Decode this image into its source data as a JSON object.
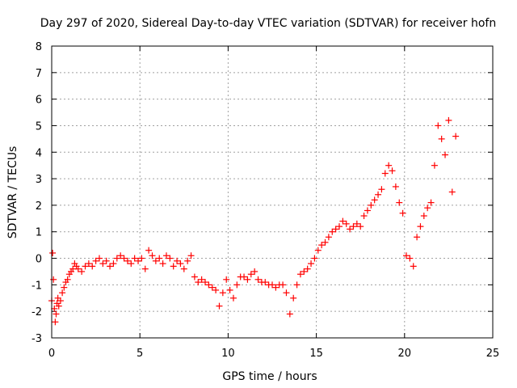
{
  "chart_data": {
    "type": "scatter",
    "title": "Day 297 of 2020, Sidereal Day-to-day VTEC variation (SDTVAR) for receiver hofn",
    "xlabel": "GPS time / hours",
    "ylabel": "SDTVAR / TECUs",
    "xlim": [
      0,
      25
    ],
    "ylim": [
      -3,
      8
    ],
    "xticks": [
      0,
      5,
      10,
      15,
      20,
      25
    ],
    "yticks": [
      -3,
      -2,
      -1,
      0,
      1,
      2,
      3,
      4,
      5,
      6,
      7,
      8
    ],
    "grid": true,
    "marker": "+",
    "color": "#ff0000",
    "series": [
      {
        "name": "SDTVAR",
        "x": [
          0.0,
          0.05,
          0.1,
          0.15,
          0.2,
          0.25,
          0.3,
          0.35,
          0.4,
          0.5,
          0.6,
          0.7,
          0.8,
          0.9,
          1.0,
          1.1,
          1.2,
          1.3,
          1.4,
          1.5,
          1.7,
          1.9,
          2.1,
          2.3,
          2.5,
          2.7,
          2.9,
          3.1,
          3.3,
          3.5,
          3.7,
          3.9,
          4.1,
          4.3,
          4.5,
          4.7,
          4.9,
          5.1,
          5.3,
          5.5,
          5.7,
          5.9,
          6.1,
          6.3,
          6.5,
          6.7,
          6.9,
          7.1,
          7.3,
          7.5,
          7.7,
          7.9,
          8.1,
          8.3,
          8.5,
          8.7,
          8.9,
          9.1,
          9.3,
          9.5,
          9.7,
          9.9,
          10.1,
          10.3,
          10.5,
          10.7,
          10.9,
          11.1,
          11.3,
          11.5,
          11.7,
          11.9,
          12.1,
          12.3,
          12.5,
          12.7,
          12.9,
          13.1,
          13.3,
          13.5,
          13.7,
          13.9,
          14.1,
          14.3,
          14.5,
          14.7,
          14.9,
          15.1,
          15.3,
          15.5,
          15.7,
          15.9,
          16.1,
          16.3,
          16.5,
          16.7,
          16.9,
          17.1,
          17.3,
          17.5,
          17.7,
          17.9,
          18.1,
          18.3,
          18.5,
          18.7,
          18.9,
          19.1,
          19.3,
          19.5,
          19.7,
          19.9,
          20.1,
          20.3,
          20.5,
          20.7,
          20.9,
          21.1,
          21.3,
          21.5,
          21.7,
          21.9,
          22.1,
          22.3,
          22.5,
          22.7,
          22.9
        ],
        "y": [
          -1.6,
          0.2,
          -0.8,
          -1.9,
          -2.4,
          -2.1,
          -1.7,
          -1.5,
          -1.8,
          -1.6,
          -1.3,
          -1.1,
          -0.9,
          -0.8,
          -0.6,
          -0.5,
          -0.4,
          -0.2,
          -0.3,
          -0.4,
          -0.5,
          -0.3,
          -0.2,
          -0.3,
          -0.1,
          0.0,
          -0.2,
          -0.1,
          -0.3,
          -0.2,
          0.0,
          0.1,
          0.0,
          -0.1,
          -0.2,
          0.0,
          -0.1,
          0.0,
          -0.4,
          0.3,
          0.1,
          -0.1,
          0.0,
          -0.2,
          0.1,
          0.0,
          -0.3,
          -0.1,
          -0.2,
          -0.4,
          -0.1,
          0.1,
          -0.7,
          -0.9,
          -0.8,
          -0.9,
          -1.0,
          -1.1,
          -1.2,
          -1.8,
          -1.3,
          -0.8,
          -1.2,
          -1.5,
          -1.0,
          -0.7,
          -0.7,
          -0.8,
          -0.6,
          -0.5,
          -0.8,
          -0.9,
          -0.9,
          -1.0,
          -1.0,
          -1.1,
          -1.0,
          -1.0,
          -1.3,
          -2.1,
          -1.5,
          -1.0,
          -0.6,
          -0.5,
          -0.4,
          -0.2,
          0.0,
          0.3,
          0.5,
          0.6,
          0.8,
          1.0,
          1.1,
          1.2,
          1.4,
          1.3,
          1.1,
          1.2,
          1.3,
          1.2,
          1.6,
          1.8,
          2.0,
          2.2,
          2.4,
          2.6,
          3.2,
          3.5,
          3.3,
          2.7,
          2.1,
          1.7,
          0.1,
          0.0,
          -0.3,
          0.8,
          1.2,
          1.6,
          1.9,
          2.1,
          3.5,
          5.0,
          4.5,
          3.9,
          5.2,
          2.5,
          4.6
        ]
      }
    ]
  }
}
